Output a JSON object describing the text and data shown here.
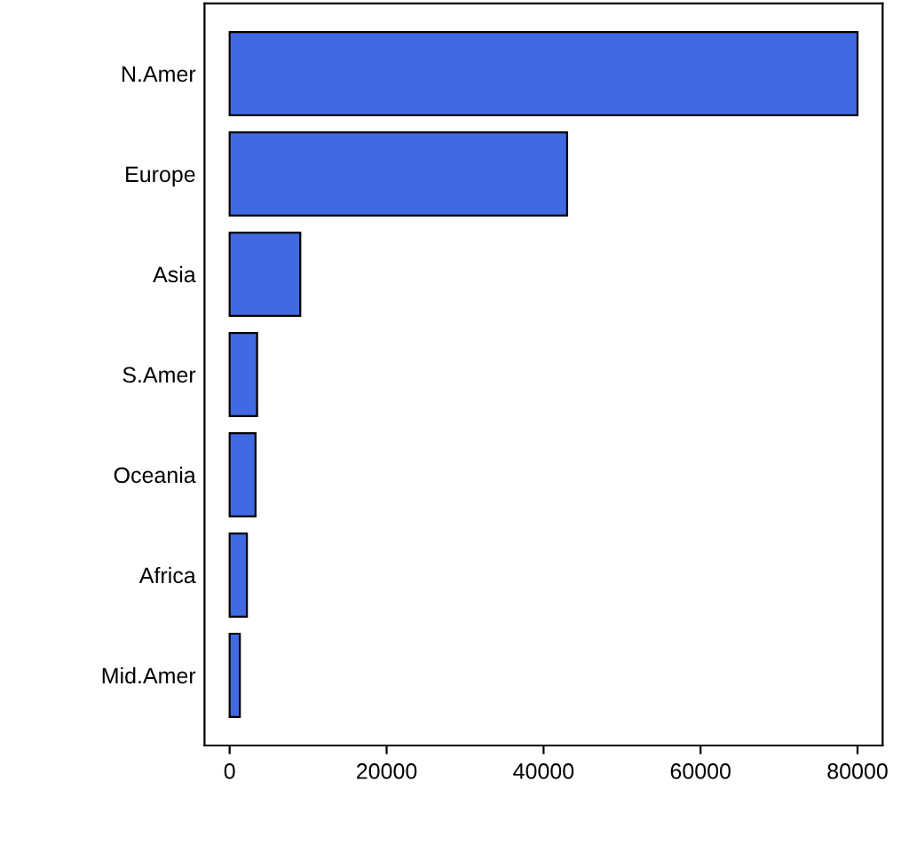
{
  "chart_data": {
    "type": "bar",
    "orientation": "horizontal",
    "categories": [
      "N.Amer",
      "Europe",
      "Asia",
      "S.Amer",
      "Oceania",
      "Africa",
      "Mid.Amer"
    ],
    "values": [
      80000,
      43000,
      9000,
      3500,
      3300,
      2200,
      1300
    ],
    "color": "#4169e1",
    "xlim": [
      -3200,
      83200
    ],
    "xticks": [
      0,
      20000,
      40000,
      60000,
      80000
    ],
    "grid": false,
    "legend": false
  }
}
